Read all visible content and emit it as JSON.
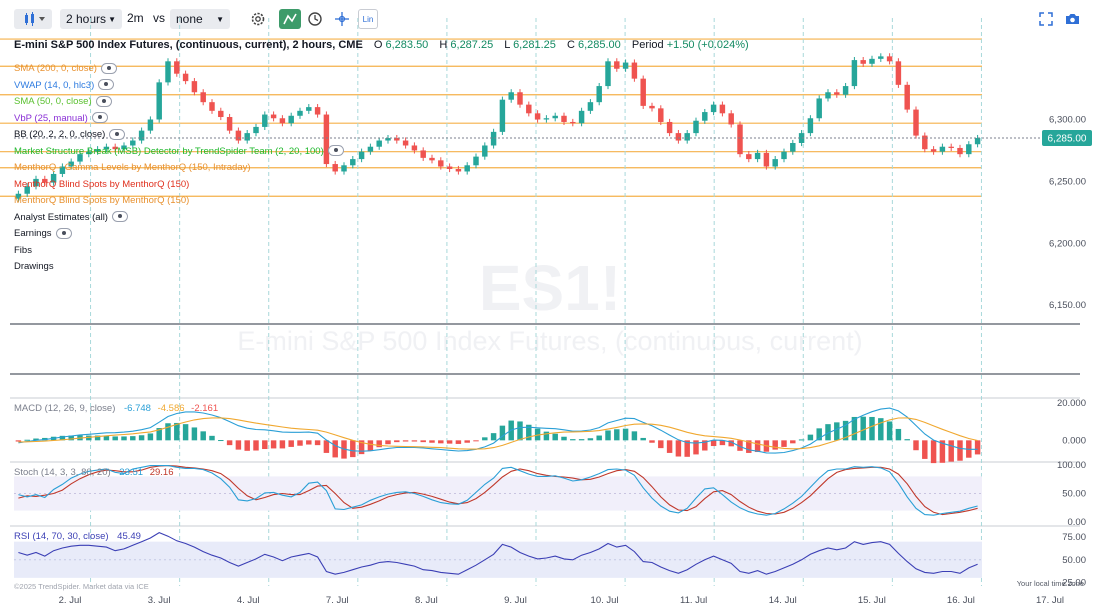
{
  "toolbar": {
    "interval": "2 hours",
    "step": "2m",
    "vs_label": "vs",
    "compare": "none",
    "scale_label": "Lin"
  },
  "header": {
    "title": "E-mini S&P 500 Index Futures, (continuous, current), 2 hours, CME",
    "o_label": "O",
    "o": "6,283.50",
    "h_label": "H",
    "h": "6,287.25",
    "l_label": "L",
    "l": "6,281.25",
    "c_label": "C",
    "c": "6,285.00",
    "period_label": "Period",
    "period": "+1.50 (+0.024%)"
  },
  "indicators": [
    {
      "label": "SMA (200, 0, close)",
      "color": "#e8912f",
      "eye": true
    },
    {
      "label": "VWAP (14, 0, hlc3)",
      "color": "#2f7ce0",
      "eye": true
    },
    {
      "label": "SMA (50, 0, close)",
      "color": "#5ac02f",
      "eye": true
    },
    {
      "label": "VbP (25, manual)",
      "color": "#8a2fd6",
      "eye": true
    },
    {
      "label": "BB (20, 2, 2, 0, close)",
      "color": "#131722",
      "eye": true
    },
    {
      "label": "Market Structure Break (MSB) Detector by TrendSpider Team (2, 20, 100)",
      "color": "#1fb82c",
      "eye": true
    },
    {
      "label": "MenthorQ - Gamma Levels by MenthorQ (150, Intraday)",
      "color": "#e8912f",
      "eye": false
    },
    {
      "label": "MenthorQ Blind Spots by MenthorQ (150)",
      "color": "#e0301e",
      "eye": false
    },
    {
      "label": "MenthorQ Blind Spots by MenthorQ (150)",
      "color": "#e8912f",
      "eye": false
    },
    {
      "label": "Analyst Estimates (all)",
      "color": "#131722",
      "eye": true
    },
    {
      "label": "Earnings",
      "color": "#131722",
      "eye": true
    },
    {
      "label": "Fibs",
      "color": "#131722",
      "eye": false
    },
    {
      "label": "Drawings",
      "color": "#131722",
      "eye": false
    }
  ],
  "watermark": {
    "symbol": "ES1!",
    "name": "E-mini S&P 500 Index Futures, (continuous, current)"
  },
  "macd_legend": {
    "label": "MACD (12, 26, 9, close)",
    "v1": "-6.748",
    "v2": "-4.586",
    "v3": "-2.161"
  },
  "stoch_legend": {
    "label": "Stoch (14, 3, 3, 80, 20)",
    "v1": "23.51",
    "v2": "29.16"
  },
  "rsi_legend": {
    "label": "RSI (14, 70, 30, close)",
    "v1": "45.49"
  },
  "footer": {
    "copyright": "©2025 TrendSpider. Market data via ICE",
    "timezone": "Your local time zone"
  },
  "colors": {
    "up": "#26a69a",
    "down": "#ef5350",
    "level": "#f5b04a",
    "macd": "#2a9fd6",
    "signal": "#f0a830",
    "stoch_k": "#2a9fd6",
    "stoch_d": "#c0392b",
    "rsi": "#3b3fb5"
  },
  "chart_data": [
    {
      "type": "candlestick",
      "title": "E-mini S&P 500 Index Futures, (continuous, current), 2 hours, CME",
      "x_ticks": [
        "2. Jul",
        "3. Jul",
        "4. Jul",
        "7. Jul",
        "8. Jul",
        "9. Jul",
        "10. Jul",
        "11. Jul",
        "14. Jul",
        "15. Jul",
        "16. Jul",
        "17. Jul"
      ],
      "y_ticks": [
        6300,
        6250,
        6200,
        6150
      ],
      "y_tick_labels": [
        "6,300.00",
        "6,250.00",
        "6,200.00",
        "6,150.00"
      ],
      "ylim": [
        6138,
        6382
      ],
      "last_price": 6285.0,
      "last_price_label": "6,285.00",
      "levels": [
        6365,
        6343,
        6320,
        6297,
        6274,
        6261,
        6238
      ],
      "close": [
        6240,
        6246,
        6252,
        6249,
        6256,
        6262,
        6266,
        6272,
        6274,
        6276,
        6278,
        6276,
        6279,
        6283,
        6291,
        6300,
        6330,
        6347,
        6337,
        6331,
        6322,
        6314,
        6307,
        6302,
        6291,
        6283,
        6289,
        6294,
        6304,
        6301,
        6297,
        6303,
        6307,
        6310,
        6304,
        6264,
        6258,
        6263,
        6268,
        6274,
        6278,
        6283,
        6285,
        6283,
        6279,
        6275,
        6269,
        6267,
        6262,
        6260,
        6258,
        6263,
        6270,
        6279,
        6290,
        6316,
        6322,
        6312,
        6305,
        6300,
        6301,
        6303,
        6298,
        6297,
        6307,
        6314,
        6327,
        6347,
        6341,
        6346,
        6333,
        6311,
        6309,
        6298,
        6289,
        6283,
        6289,
        6299,
        6306,
        6312,
        6305,
        6296,
        6272,
        6268,
        6273,
        6262,
        6268,
        6274,
        6281,
        6289,
        6301,
        6317,
        6322,
        6320,
        6327,
        6348,
        6345,
        6349,
        6351,
        6347,
        6328,
        6308,
        6287,
        6276,
        6274,
        6278,
        6277,
        6272,
        6280,
        6285
      ]
    },
    {
      "type": "line",
      "title": "MACD (12, 26, 9, close)",
      "y_ticks": [
        20,
        0
      ],
      "y_tick_labels": [
        "20.000",
        "0.000"
      ],
      "ylim": [
        -10.5,
        21
      ],
      "series": [
        {
          "name": "MACD",
          "values": [
            -1.3,
            -0.6,
            0,
            0.4,
            1.1,
            1.8,
            2.3,
            2.9,
            3.2,
            3.6,
            4.0,
            4.1,
            4.4,
            4.9,
            5.7,
            6.8,
            9.7,
            12.7,
            14.3,
            15.2,
            15.2,
            14.6,
            13.5,
            12.1,
            10.0,
            7.8,
            6.5,
            5.8,
            5.6,
            5.1,
            4.4,
            4.3,
            4.3,
            4.4,
            3.8,
            0.2,
            -2.8,
            -4.7,
            -5.6,
            -5.8,
            -5.6,
            -5.0,
            -4.3,
            -3.8,
            -3.7,
            -3.8,
            -4.1,
            -4.5,
            -4.9,
            -5.3,
            -5.7,
            -5.5,
            -4.8,
            -3.5,
            -1.5,
            2.2,
            5.5,
            6.8,
            7.0,
            6.7,
            6.4,
            6.2,
            5.6,
            4.9,
            5.0,
            5.5,
            6.8,
            9.3,
            10.6,
            11.8,
            11.6,
            9.6,
            7.8,
            5.4,
            2.8,
            0.3,
            -1.2,
            -1.5,
            -1.0,
            0.1,
            0.0,
            -0.9,
            -3.3,
            -5.1,
            -5.8,
            -6.7,
            -6.8,
            -6.5,
            -5.5,
            -4.1,
            -2.0,
            1.1,
            3.9,
            5.9,
            8.0,
            11.3,
            13.4,
            15.3,
            16.7,
            17.2,
            15.7,
            12.4,
            7.9,
            3.4,
            0.1,
            -1.6,
            -2.9,
            -4.3,
            -4.8,
            -4.8
          ]
        },
        {
          "name": "Signal",
          "values": [
            -0.9,
            -0.8,
            -0.6,
            -0.4,
            -0.1,
            0.3,
            0.7,
            1.2,
            1.6,
            2.0,
            2.4,
            2.8,
            3.1,
            3.5,
            4.0,
            4.5,
            5.6,
            7.0,
            8.5,
            9.8,
            10.9,
            11.6,
            12.0,
            12.0,
            11.6,
            10.9,
            10.0,
            9.2,
            8.5,
            7.8,
            7.1,
            6.5,
            6.1,
            5.8,
            5.4,
            4.4,
            2.9,
            1.4,
            0.0,
            -1.2,
            -2.1,
            -2.7,
            -3.0,
            -3.2,
            -3.3,
            -3.4,
            -3.5,
            -3.7,
            -3.9,
            -4.2,
            -4.5,
            -4.7,
            -4.7,
            -4.5,
            -3.9,
            -2.7,
            -1.1,
            0.5,
            1.8,
            2.8,
            3.5,
            4.0,
            4.4,
            4.5,
            4.6,
            4.8,
            5.2,
            6.0,
            6.9,
            7.9,
            8.6,
            8.8,
            8.6,
            8.0,
            7.0,
            5.7,
            4.3,
            3.2,
            2.4,
            2.0,
            1.6,
            1.1,
            0.2,
            -0.9,
            -1.9,
            -2.9,
            -3.7,
            -4.3,
            -4.5,
            -4.4,
            -3.9,
            -2.9,
            -1.5,
            -0.1,
            1.5,
            3.5,
            5.5,
            7.5,
            9.3,
            10.9,
            11.9,
            12.0,
            11.2,
            9.6,
            7.7,
            5.9,
            4.2,
            2.5,
            1.0,
            -0.1
          ]
        }
      ]
    },
    {
      "type": "line",
      "title": "Stoch (14, 3, 3, 80, 20)",
      "y_ticks": [
        100,
        50,
        0
      ],
      "y_tick_labels": [
        "100.00",
        "50.00",
        "0.00"
      ],
      "ylim": [
        0,
        100
      ],
      "bands": [
        80,
        20
      ],
      "series": [
        {
          "name": "%K",
          "values": [
            48,
            44,
            48,
            43,
            57,
            66,
            77,
            84,
            89,
            91,
            93,
            87,
            85,
            93,
            96,
            99,
            99,
            99,
            96,
            94,
            94,
            92,
            86,
            76,
            61,
            39,
            37,
            41,
            51,
            52,
            47,
            44,
            52,
            68,
            70,
            55,
            23,
            22,
            26,
            30,
            38,
            44,
            49,
            52,
            53,
            50,
            45,
            39,
            34,
            32,
            31,
            38,
            52,
            66,
            77,
            94,
            96,
            90,
            84,
            80,
            80,
            81,
            77,
            72,
            74,
            79,
            85,
            92,
            93,
            91,
            82,
            60,
            42,
            28,
            19,
            16,
            24,
            42,
            58,
            60,
            48,
            35,
            25,
            18,
            14,
            12,
            15,
            23,
            33,
            45,
            61,
            77,
            90,
            93,
            93,
            97,
            96,
            97,
            95,
            88,
            68,
            44,
            24,
            13,
            12,
            15,
            17,
            19,
            24,
            28
          ]
        },
        {
          "name": "%D",
          "values": [
            42,
            46,
            45,
            47,
            50,
            56,
            67,
            76,
            83,
            88,
            91,
            90,
            88,
            88,
            91,
            96,
            98,
            99,
            98,
            96,
            95,
            93,
            90,
            85,
            74,
            59,
            46,
            39,
            43,
            48,
            50,
            48,
            48,
            55,
            63,
            64,
            50,
            34,
            24,
            26,
            31,
            37,
            44,
            48,
            51,
            52,
            49,
            45,
            40,
            35,
            32,
            34,
            41,
            52,
            65,
            79,
            89,
            93,
            90,
            85,
            82,
            80,
            79,
            77,
            74,
            75,
            79,
            85,
            90,
            92,
            89,
            78,
            62,
            44,
            30,
            21,
            20,
            27,
            41,
            53,
            55,
            48,
            36,
            26,
            19,
            15,
            14,
            17,
            24,
            34,
            46,
            61,
            76,
            87,
            92,
            94,
            95,
            96,
            96,
            93,
            84,
            67,
            45,
            27,
            17,
            13,
            15,
            17,
            20,
            24
          ]
        }
      ]
    },
    {
      "type": "line",
      "title": "RSI (14, 70, 30, close)",
      "y_ticks": [
        75,
        50,
        25
      ],
      "y_tick_labels": [
        "75.00",
        "50.00",
        "25.00"
      ],
      "ylim": [
        21,
        84
      ],
      "bands": [
        70,
        30
      ],
      "series": [
        {
          "name": "RSI",
          "values": [
            58,
            55,
            58,
            54,
            60,
            63,
            65,
            66,
            66,
            65,
            64,
            60,
            62,
            66,
            70,
            74,
            80,
            76,
            71,
            68,
            64,
            59,
            55,
            52,
            47,
            43,
            47,
            51,
            56,
            53,
            49,
            53,
            55,
            57,
            53,
            37,
            34,
            36,
            39,
            42,
            44,
            47,
            48,
            47,
            45,
            43,
            39,
            38,
            36,
            35,
            34,
            39,
            44,
            50,
            56,
            67,
            64,
            58,
            54,
            51,
            52,
            54,
            51,
            50,
            55,
            58,
            62,
            68,
            64,
            66,
            59,
            48,
            47,
            42,
            38,
            35,
            39,
            45,
            50,
            54,
            50,
            46,
            37,
            35,
            38,
            34,
            37,
            41,
            45,
            50,
            56,
            60,
            63,
            61,
            63,
            70,
            67,
            69,
            70,
            67,
            57,
            48,
            40,
            36,
            35,
            37,
            37,
            35,
            41,
            45
          ]
        }
      ]
    }
  ]
}
